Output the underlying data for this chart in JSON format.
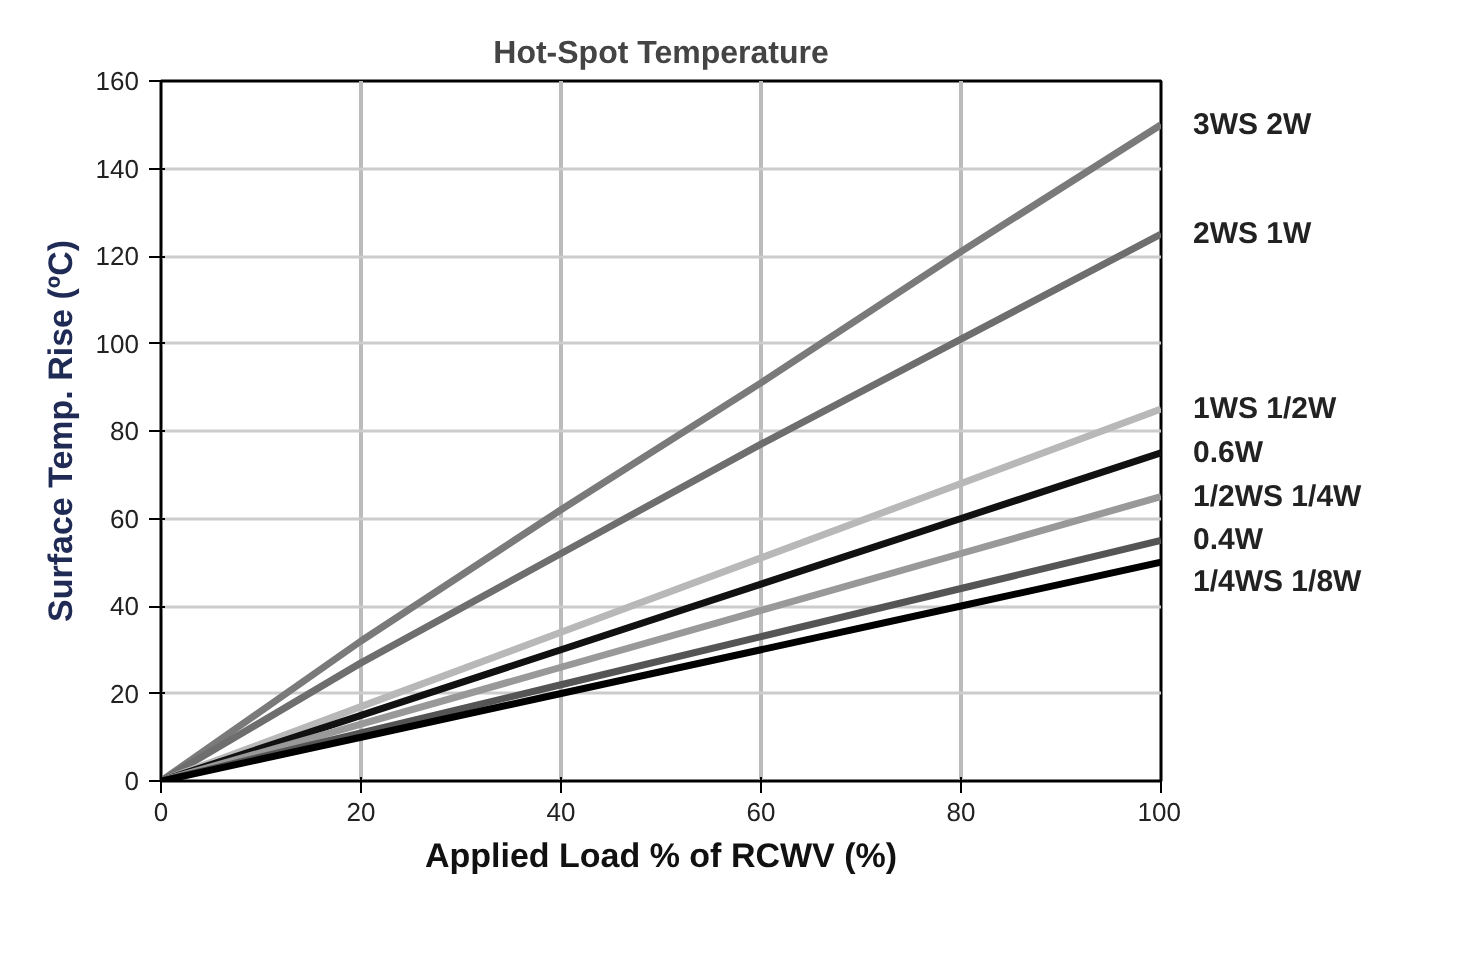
{
  "chart_data": {
    "type": "line",
    "title": "Hot-Spot Temperature",
    "xlabel": "Applied Load % of RCWV (%)",
    "ylabel": "Surface Temp. Rise (ºC)",
    "x": [
      0,
      20,
      40,
      60,
      80,
      100
    ],
    "series": [
      {
        "name": "3WS 2W",
        "color": "#7a7a7a",
        "values": [
          0,
          32,
          62,
          91,
          121,
          150
        ]
      },
      {
        "name": "2WS 1W",
        "color": "#6e6e6e",
        "values": [
          0,
          27,
          52,
          77,
          101,
          125
        ]
      },
      {
        "name": "1WS 1/2W",
        "color": "#b8b8b8",
        "values": [
          0,
          17,
          34,
          51,
          68,
          85
        ]
      },
      {
        "name": "0.6W",
        "color": "#111111",
        "values": [
          0,
          15,
          30,
          45,
          60,
          75
        ]
      },
      {
        "name": "1/2WS 1/4W",
        "color": "#999999",
        "values": [
          0,
          13,
          26,
          39,
          52,
          65
        ]
      },
      {
        "name": "0.4W",
        "color": "#555555",
        "values": [
          0,
          11,
          22,
          33,
          44,
          55
        ]
      },
      {
        "name": "1/4WS 1/8W",
        "color": "#000000",
        "values": [
          0,
          10,
          20,
          30,
          40,
          50
        ]
      }
    ],
    "xlim": [
      0,
      100
    ],
    "ylim": [
      0,
      160
    ],
    "xticks": [
      0,
      20,
      40,
      60,
      80,
      100
    ],
    "yticks": [
      0,
      20,
      40,
      60,
      80,
      100,
      120,
      140,
      160
    ],
    "grid": true,
    "marker": "none",
    "line_style": "solid"
  }
}
